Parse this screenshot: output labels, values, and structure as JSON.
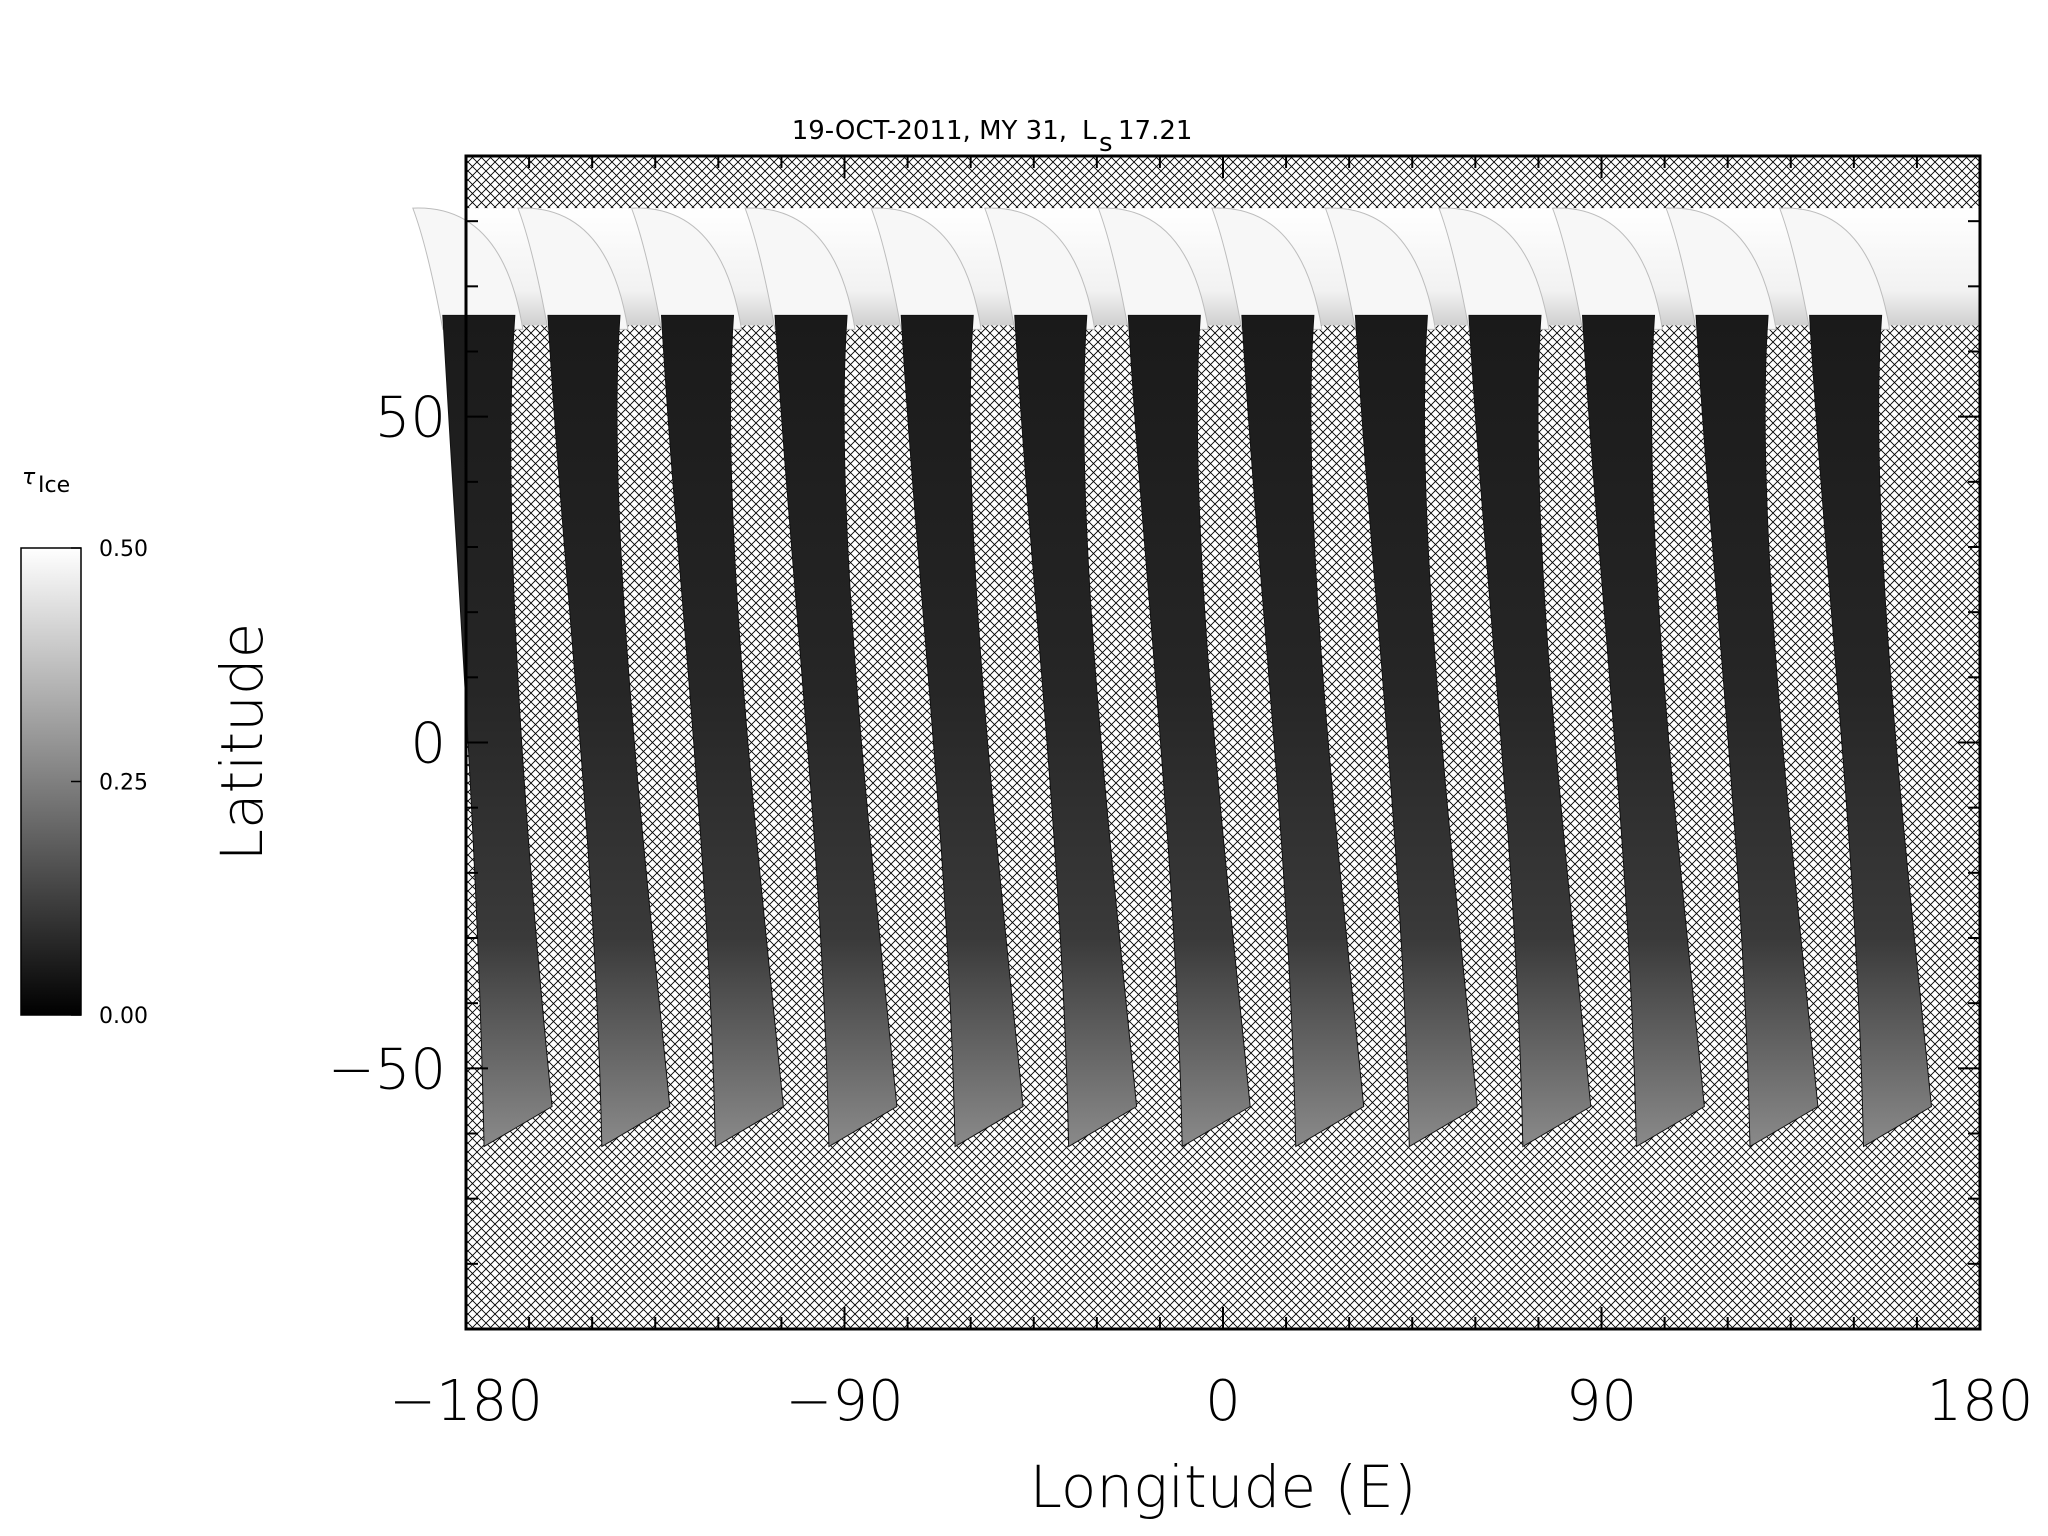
{
  "chart_data": {
    "type": "heatmap",
    "title": "19-OCT-2011, MY 31,",
    "title_ls_symbol": "L",
    "title_ls_subscript": "s",
    "title_ls_value": "17.21",
    "xlabel": "Longitude (E)",
    "ylabel": "Latitude",
    "xlim": [
      -180,
      180
    ],
    "ylim": [
      -90,
      90
    ],
    "xticks": [
      -180,
      -90,
      0,
      90,
      180
    ],
    "xtick_labels": [
      "−180",
      "−90",
      "0",
      "90",
      "180"
    ],
    "yticks": [
      -50,
      0,
      50
    ],
    "ytick_labels": [
      "−50",
      "0",
      "50"
    ],
    "no_data_fill": "cross-hatch",
    "colorbar": {
      "title_symbol": "τ",
      "title_subscript": "Ice",
      "min": 0.0,
      "max": 0.5,
      "tick_values": [
        0.0,
        0.25,
        0.5
      ],
      "tick_labels": [
        "0.00",
        "0.25",
        "0.50"
      ],
      "colormap": "grayscale",
      "low_color": "#000000",
      "high_color": "#ffffff"
    },
    "north_cap_latitude_top": 82,
    "north_cap_latitude_bottom": 64,
    "swaths": [
      {
        "lon_top": -176,
        "lon_bottom": -170,
        "lat_bottom": -62
      },
      {
        "lon_top": -151,
        "lon_bottom": -142,
        "lat_bottom": -62
      },
      {
        "lon_top": -124,
        "lon_bottom": -115,
        "lat_bottom": -62
      },
      {
        "lon_top": -97,
        "lon_bottom": -88,
        "lat_bottom": -62
      },
      {
        "lon_top": -67,
        "lon_bottom": -58,
        "lat_bottom": -62
      },
      {
        "lon_top": -40,
        "lon_bottom": -31,
        "lat_bottom": -62
      },
      {
        "lon_top": -13,
        "lon_bottom": -4,
        "lat_bottom": -62
      },
      {
        "lon_top": 14,
        "lon_bottom": 23,
        "lat_bottom": -62
      },
      {
        "lon_top": 41,
        "lon_bottom": 50,
        "lat_bottom": -62
      },
      {
        "lon_top": 68,
        "lon_bottom": 77,
        "lat_bottom": -62
      },
      {
        "lon_top": 95,
        "lon_bottom": 104,
        "lat_bottom": -62
      },
      {
        "lon_top": 122,
        "lon_bottom": 131,
        "lat_bottom": -62
      },
      {
        "lon_top": 149,
        "lon_bottom": 158,
        "lat_bottom": -62
      }
    ]
  }
}
